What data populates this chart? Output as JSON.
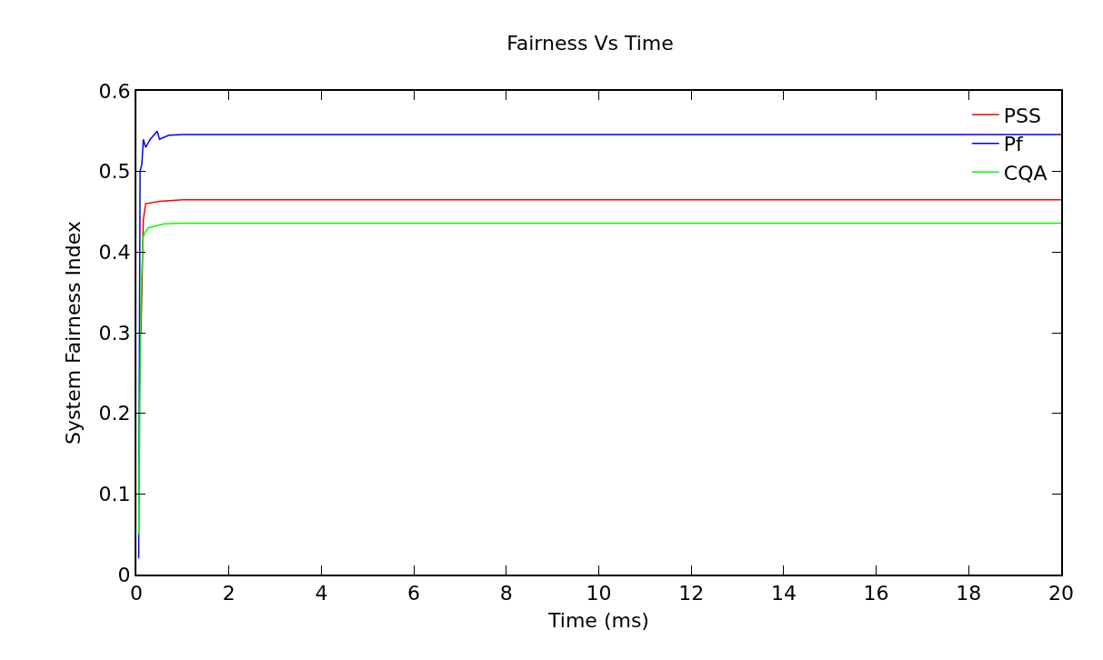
{
  "chart_data": {
    "type": "line",
    "title": "Fairness Vs Time",
    "xlabel": "Time (ms)",
    "ylabel": "System Fairness Index",
    "xlim": [
      0,
      20
    ],
    "xticks": [
      0,
      2,
      4,
      6,
      8,
      10,
      12,
      14,
      16,
      18,
      20
    ],
    "ylim": [
      0,
      0.6
    ],
    "yticks": [
      0,
      0.1,
      0.2,
      0.3,
      0.4,
      0.5,
      0.6
    ],
    "grid": false,
    "legend": "top right",
    "marker": "none",
    "line_style": "solid",
    "series": [
      {
        "name": "PSS",
        "color": "#ff0000",
        "x": [
          0.1,
          0.15,
          0.2,
          0.5,
          1,
          20
        ],
        "values": [
          0.3,
          0.44,
          0.46,
          0.463,
          0.465,
          0.465
        ]
      },
      {
        "name": "Pf",
        "color": "#0000ff",
        "x": [
          0.05,
          0.08,
          0.12,
          0.15,
          0.2,
          0.3,
          0.45,
          0.5,
          0.7,
          1,
          20
        ],
        "values": [
          0.02,
          0.5,
          0.51,
          0.54,
          0.53,
          0.54,
          0.55,
          0.54,
          0.545,
          0.546,
          0.546
        ]
      },
      {
        "name": "CQA",
        "color": "#00ff00",
        "x": [
          0.05,
          0.1,
          0.15,
          0.25,
          0.6,
          1,
          20
        ],
        "values": [
          0.05,
          0.35,
          0.42,
          0.43,
          0.435,
          0.436,
          0.436
        ]
      }
    ]
  }
}
